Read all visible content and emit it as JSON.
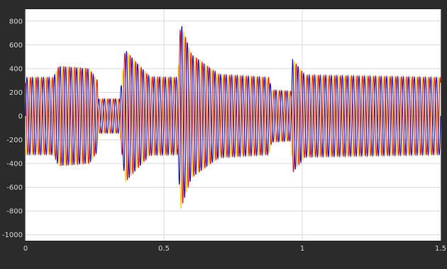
{
  "chart_data": {
    "type": "line",
    "title": "",
    "xlabel": "",
    "ylabel": "",
    "xlim": [
      0,
      1.5
    ],
    "ylim": [
      -1050,
      900
    ],
    "grid": true,
    "x_ticks": [
      0,
      0.5,
      1,
      1.5
    ],
    "x_tick_labels": [
      "0",
      "0.5",
      "1",
      "1.5"
    ],
    "y_ticks": [
      800,
      600,
      400,
      200,
      0,
      -200,
      -400,
      -600,
      -800,
      -1000
    ],
    "y_tick_labels": [
      "800",
      "600",
      "400",
      "200",
      "0",
      "-200",
      "-400",
      "-600",
      "-800",
      "-1000"
    ],
    "colors": {
      "background": "#2b2b2b",
      "plot_area": "#ffffff",
      "grid": "#d9d9d9",
      "tick_text": "#d6d6d6"
    },
    "signal": {
      "frequency_hz": 50,
      "phase_shift_deg": 120,
      "envelope_points": [
        {
          "t": 0.0,
          "amp": 325
        },
        {
          "t": 0.1,
          "amp": 325
        },
        {
          "t": 0.12,
          "amp": 420
        },
        {
          "t": 0.23,
          "amp": 400
        },
        {
          "t": 0.26,
          "amp": 300
        },
        {
          "t": 0.262,
          "amp": 145
        },
        {
          "t": 0.34,
          "amp": 145
        },
        {
          "t": 0.36,
          "amp": 560
        },
        {
          "t": 0.39,
          "amp": 480
        },
        {
          "t": 0.45,
          "amp": 330
        },
        {
          "t": 0.55,
          "amp": 325
        },
        {
          "t": 0.56,
          "amp": 790
        },
        {
          "t": 0.6,
          "amp": 520
        },
        {
          "t": 0.7,
          "amp": 350
        },
        {
          "t": 0.88,
          "amp": 325
        },
        {
          "t": 0.89,
          "amp": 220
        },
        {
          "t": 0.96,
          "amp": 210
        },
        {
          "t": 0.965,
          "amp": 480
        },
        {
          "t": 1.01,
          "amp": 345
        },
        {
          "t": 1.5,
          "amp": 325
        }
      ]
    },
    "series": [
      {
        "color": "#ffd21a",
        "phase_deg": 240
      },
      {
        "color": "#e8141c",
        "phase_deg": 120
      },
      {
        "color": "#1414cc",
        "phase_deg": 0
      }
    ]
  }
}
